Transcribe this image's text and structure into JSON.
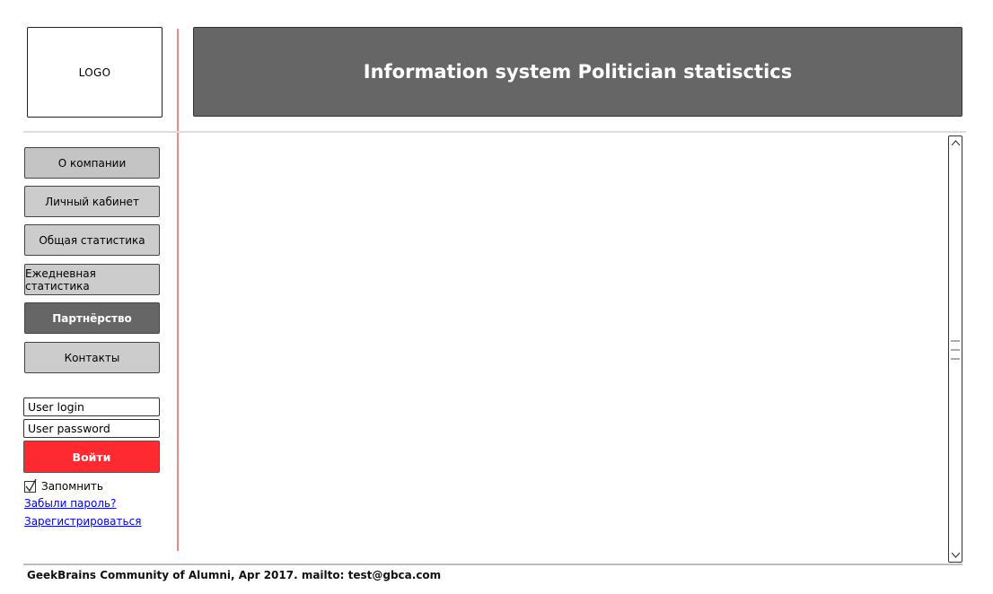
{
  "logo": {
    "label": "LOGO"
  },
  "header": {
    "title": "Information system Politician statisctics"
  },
  "menu": {
    "items": [
      {
        "label": "О компании"
      },
      {
        "label": "Личный кабинет"
      },
      {
        "label": "Общая статистика"
      },
      {
        "label": "Ежедневная статистика"
      },
      {
        "label": "Партнёрство"
      },
      {
        "label": "Контакты"
      }
    ],
    "active_index": 4
  },
  "login_form": {
    "login_placeholder": "User login",
    "password_placeholder": "User password",
    "submit_label": "Войти",
    "remember_label": "Запомнить",
    "remember_checked": true,
    "forgot_link": "Забыли пароль?",
    "register_link": "Зарегистрироваться"
  },
  "footer": {
    "text": "GeekBrains Community of Alumni, Apr 2017. mailto: test@gbca.com"
  },
  "colors": {
    "banner": "#666666",
    "active_menu": "#666666",
    "menu": "#cccccc",
    "login_button": "#ff2a2f",
    "divider": "#e98a8a",
    "link": "#0000ee"
  },
  "icons": {
    "scroll_up": "chevron-up-icon",
    "scroll_down": "chevron-down-icon",
    "grip": "grip-lines-icon",
    "check": "check-icon"
  }
}
